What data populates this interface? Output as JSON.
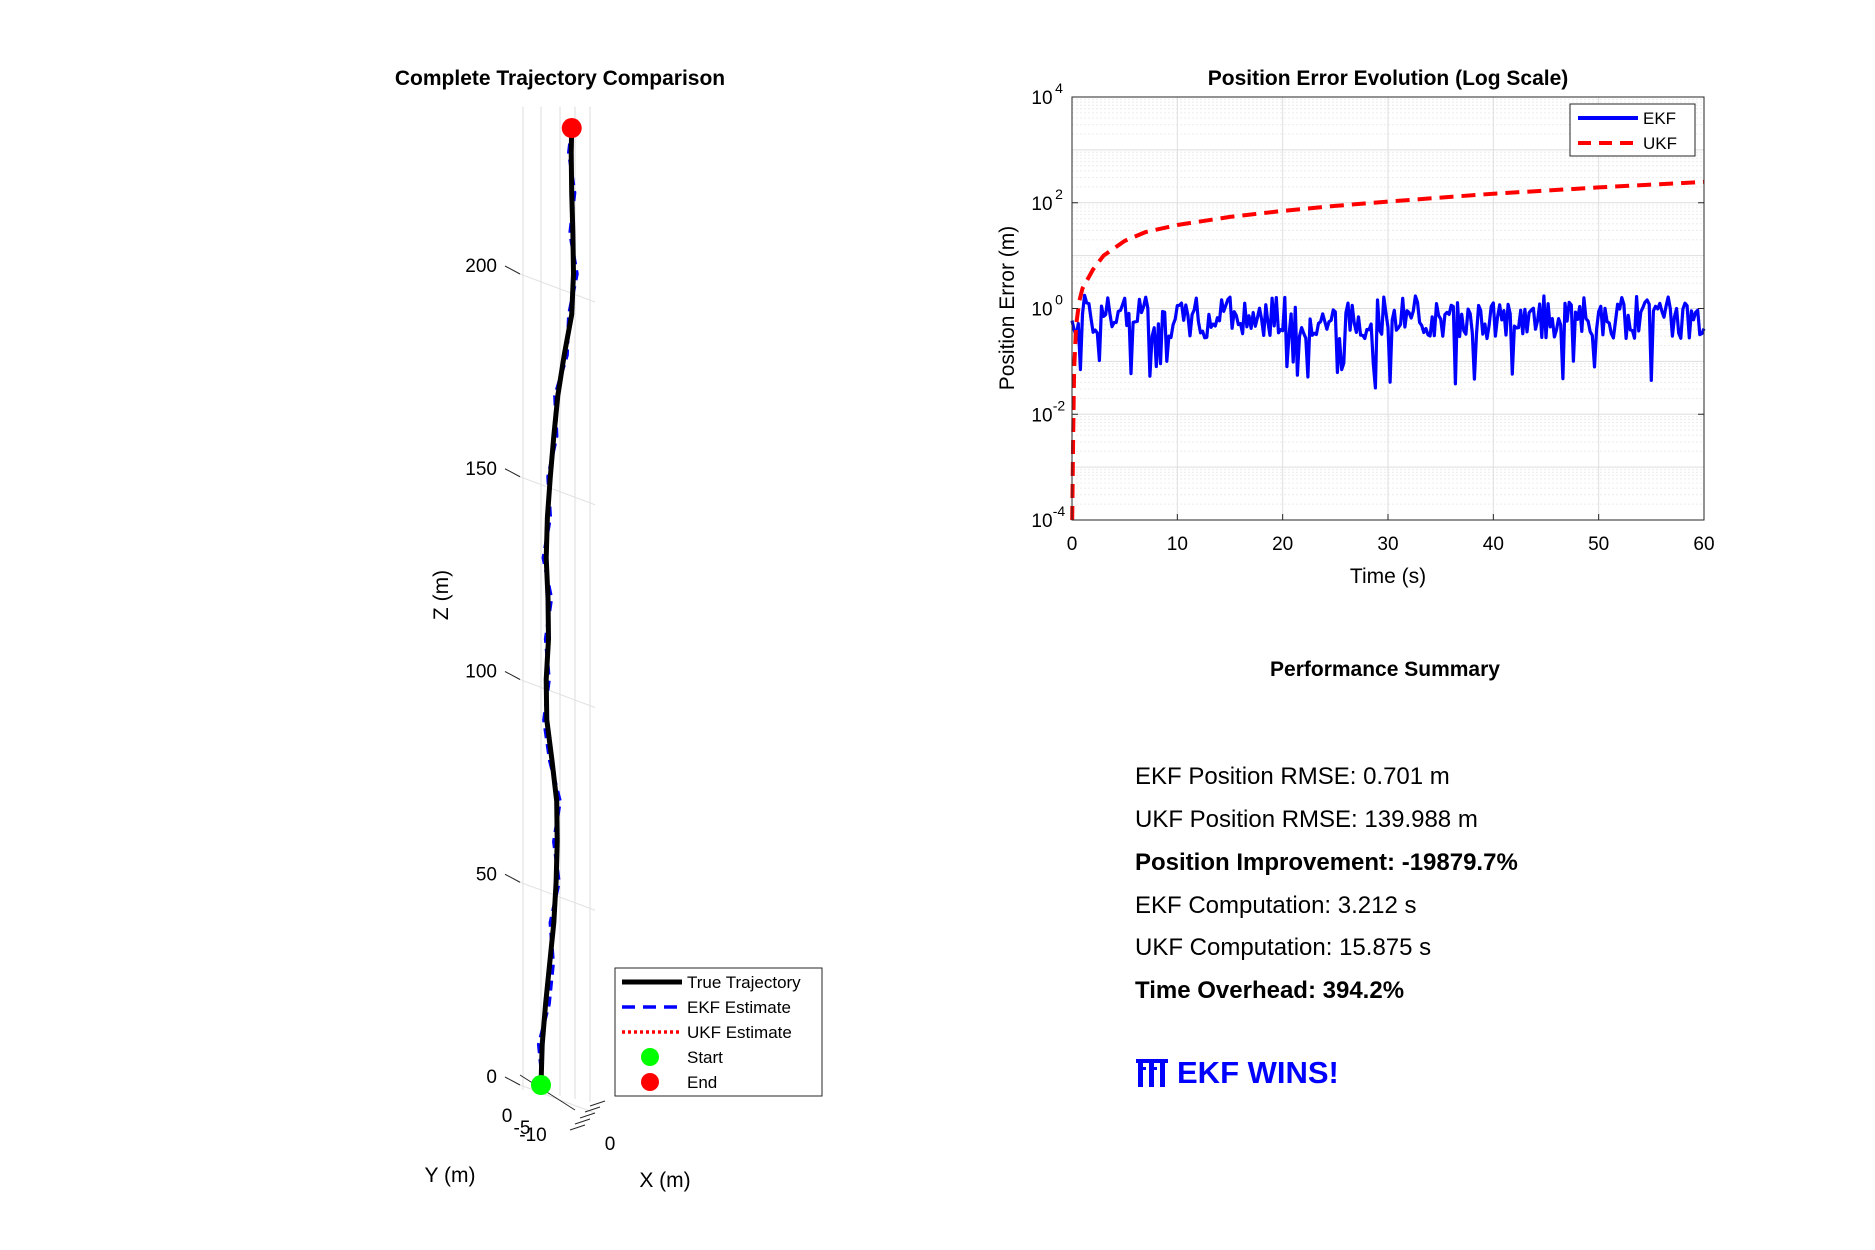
{
  "chart_data": [
    {
      "type": "line",
      "title": "Complete Trajectory Comparison",
      "projection": "3d",
      "xlabel": "X (m)",
      "ylabel": "Y (m)",
      "zlabel": "Z (m)",
      "x_ticks": [
        "0"
      ],
      "y_ticks": [
        "0",
        "-5",
        "-10"
      ],
      "z_ticks": [
        "0",
        "50",
        "100",
        "150",
        "200"
      ],
      "zlim": [
        0,
        240
      ],
      "grid": true,
      "legend_position": "bottom-right",
      "legend": [
        "True Trajectory",
        "EKF Estimate",
        "UKF Estimate",
        "Start",
        "End"
      ],
      "colors": {
        "true": "#000000",
        "ekf": "#0000ff",
        "ukf": "#ff0000",
        "start": "#00ff00",
        "end": "#ff0000"
      },
      "series": [
        {
          "name": "True Trajectory",
          "style": "solid",
          "z": [
            0,
            10,
            20,
            30,
            40,
            50,
            60,
            70,
            80,
            90,
            100,
            110,
            120,
            130,
            140,
            150,
            160,
            170,
            180,
            190,
            200,
            210,
            220,
            230,
            236
          ],
          "horizontal_offset": [
            0,
            0.2,
            0.8,
            1.5,
            2.2,
            2.6,
            2.8,
            2.7,
            1.9,
            1.0,
            0.9,
            1.3,
            1.2,
            0.9,
            1.1,
            1.6,
            2.2,
            2.9,
            4.0,
            5.3,
            5.6,
            5.5,
            5.3,
            5.2,
            5.3
          ]
        },
        {
          "name": "EKF Estimate",
          "style": "dashed",
          "z": [
            0,
            10,
            20,
            30,
            40,
            50,
            60,
            70,
            80,
            90,
            100,
            110,
            120,
            130,
            140,
            150,
            160,
            170,
            180,
            190,
            200,
            210,
            220,
            230,
            236
          ],
          "horizontal_offset": [
            0.3,
            -0.4,
            1.4,
            2.1,
            1.6,
            3.1,
            2.2,
            3.3,
            1.5,
            0.5,
            1.4,
            0.8,
            1.8,
            0.4,
            1.6,
            1.2,
            2.7,
            2.4,
            4.5,
            4.8,
            6.2,
            5.0,
            5.8,
            4.8,
            5.3
          ]
        }
      ],
      "start": {
        "z": 0
      },
      "end": {
        "z": 236
      }
    },
    {
      "type": "line",
      "title": "Position Error Evolution (Log Scale)",
      "xlabel": "Time (s)",
      "ylabel": "Position Error (m)",
      "xlim": [
        0,
        60
      ],
      "ylim": [
        0.0001,
        10000
      ],
      "yscale": "log",
      "x_ticks": [
        "0",
        "10",
        "20",
        "30",
        "40",
        "50",
        "60"
      ],
      "y_ticks": [
        {
          "base": "10",
          "exp": "-4",
          "value": 0.0001
        },
        {
          "base": "10",
          "exp": "-2",
          "value": 0.01
        },
        {
          "base": "10",
          "exp": "0",
          "value": 1
        },
        {
          "base": "10",
          "exp": "2",
          "value": 100
        },
        {
          "base": "10",
          "exp": "4",
          "value": 10000
        }
      ],
      "grid": true,
      "minor_grid": true,
      "legend_position": "top-right",
      "series": [
        {
          "name": "EKF",
          "color": "#0000ff",
          "style": "solid",
          "t_start": 0,
          "t_step": 0.2,
          "seed": 7,
          "median_error": 0.6,
          "min_error": 0.03,
          "max_error": 1.8
        },
        {
          "name": "UKF",
          "color": "#ff0000",
          "style": "dashed",
          "points": [
            [
              0.02,
              0.0001
            ],
            [
              0.05,
              0.0003
            ],
            [
              0.1,
              0.003
            ],
            [
              0.2,
              0.07
            ],
            [
              0.4,
              0.5
            ],
            [
              0.7,
              1.4
            ],
            [
              1,
              2.4
            ],
            [
              2,
              5.5
            ],
            [
              3,
              10
            ],
            [
              5,
              19
            ],
            [
              7,
              28
            ],
            [
              10,
              38
            ],
            [
              15,
              54
            ],
            [
              20,
              70
            ],
            [
              25,
              87
            ],
            [
              30,
              105
            ],
            [
              35,
              125
            ],
            [
              40,
              148
            ],
            [
              45,
              170
            ],
            [
              50,
              195
            ],
            [
              55,
              220
            ],
            [
              60,
              248
            ]
          ]
        }
      ]
    }
  ],
  "summary": {
    "title": "Performance Summary",
    "ekf_rmse": "EKF Position RMSE: 0.701 m",
    "ukf_rmse": "UKF Position RMSE: 139.988 m",
    "improvement": "Position Improvement: -19879.7%",
    "ekf_time": "EKF Computation: 3.212 s",
    "ukf_time": "UKF Computation: 15.875 s",
    "overhead": "Time Overhead: 394.2%",
    "winner": "EKF WINS!",
    "winner_icon": "trophy-icon",
    "winner_color": "#0000ff"
  }
}
